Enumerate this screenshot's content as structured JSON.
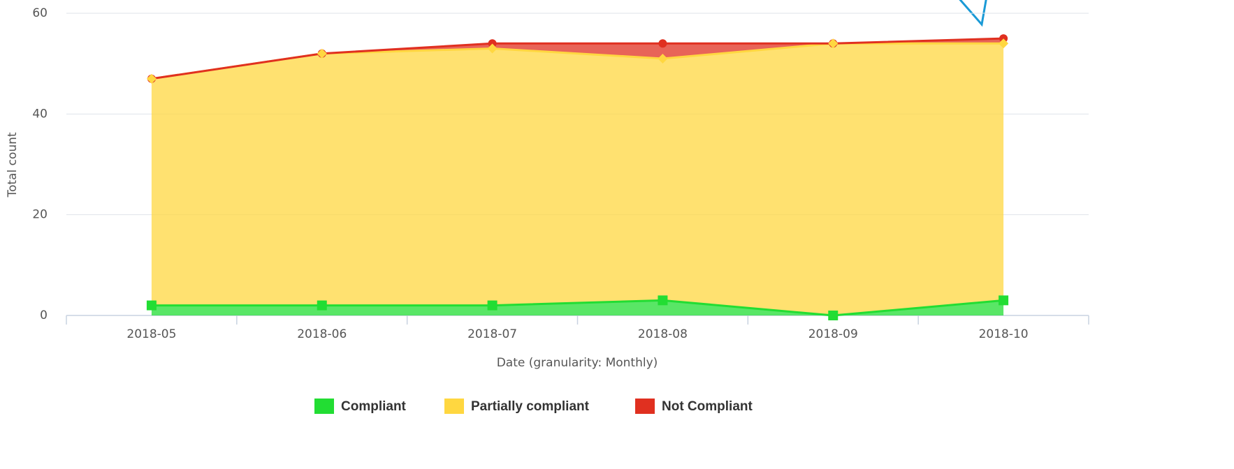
{
  "chart_data": {
    "type": "stacked_area",
    "x_label": "Date (granularity: Monthly)",
    "y_label": "Total count",
    "categories": [
      "2018-05",
      "2018-06",
      "2018-07",
      "2018-08",
      "2018-09",
      "2018-10"
    ],
    "series": [
      {
        "name": "Compliant",
        "color": "#22dd33",
        "marker": "square",
        "values": [
          2,
          2,
          2,
          3,
          0,
          3
        ]
      },
      {
        "name": "Partially compliant",
        "color": "#ffd740",
        "marker": "diamond",
        "values": [
          45,
          50,
          51,
          48,
          54,
          51
        ]
      },
      {
        "name": "Not Compliant",
        "color": "#e03020",
        "marker": "circle",
        "values": [
          0,
          0,
          1,
          3,
          0,
          1
        ]
      }
    ],
    "ylim": [
      0,
      60
    ],
    "yticks": [
      0,
      20,
      40,
      60
    ],
    "grid": true
  }
}
